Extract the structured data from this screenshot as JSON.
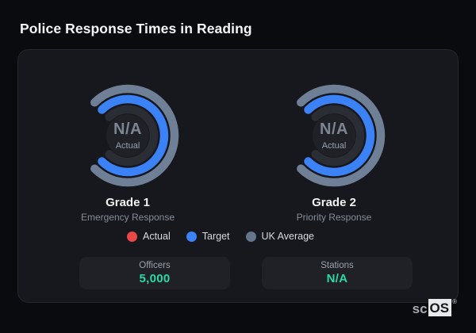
{
  "title": "Police Response Times in Reading",
  "colors": {
    "page_background": "#0a0b0e",
    "card_background": "#17181d",
    "actual_red": "#ea4747",
    "target_blue": "#3b82f6",
    "uk_average_gray": "#64748b",
    "ring_uk_average": "#6f8096",
    "ring_target": "#3b82f6",
    "ring_track": "#2b2d34",
    "stat_value_teal": "#2ad9a5"
  },
  "chart_data": [
    {
      "type": "radial-bar",
      "title": "Grade 1",
      "subtitle": "Emergency Response",
      "center_value": "N/A",
      "center_label": "Actual",
      "arc": {
        "start_angle": -45,
        "end_angle": 225
      },
      "rings": [
        {
          "name": "UK Average",
          "color": "#6f8096",
          "state": "full"
        },
        {
          "name": "Target",
          "color": "#3b82f6",
          "state": "full"
        },
        {
          "name": "Actual",
          "color": "#ea4747",
          "state": "empty-track"
        }
      ]
    },
    {
      "type": "radial-bar",
      "title": "Grade 2",
      "subtitle": "Priority Response",
      "center_value": "N/A",
      "center_label": "Actual",
      "arc": {
        "start_angle": -45,
        "end_angle": 225
      },
      "rings": [
        {
          "name": "UK Average",
          "color": "#6f8096",
          "state": "full"
        },
        {
          "name": "Target",
          "color": "#3b82f6",
          "state": "full"
        },
        {
          "name": "Actual",
          "color": "#ea4747",
          "state": "empty-track"
        }
      ]
    }
  ],
  "legend": [
    {
      "label": "Actual",
      "color": "#ea4747"
    },
    {
      "label": "Target",
      "color": "#3b82f6"
    },
    {
      "label": "UK Average",
      "color": "#64748b"
    }
  ],
  "stats": [
    {
      "label": "Officers",
      "value": "5,000"
    },
    {
      "label": "Stations",
      "value": "N/A"
    }
  ],
  "logo": {
    "prefix": "sc",
    "suffix": "OS",
    "registered": "®"
  }
}
